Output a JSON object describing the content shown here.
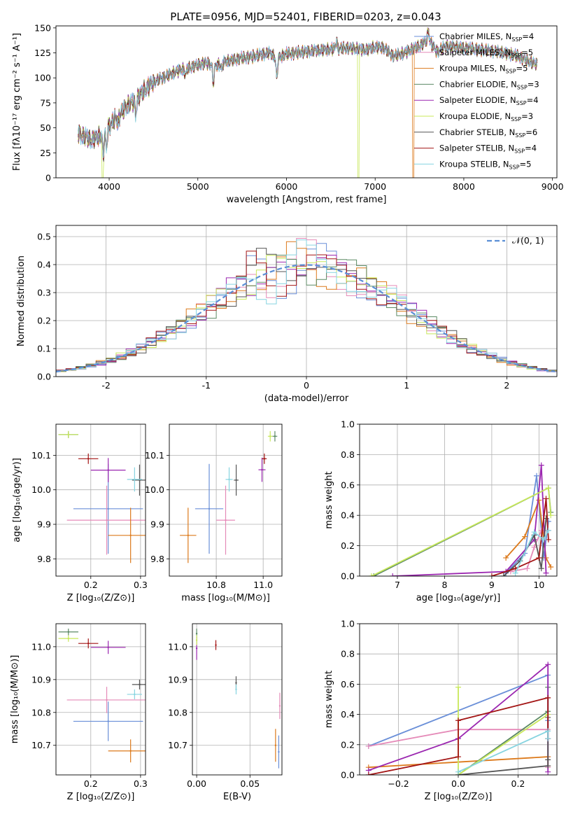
{
  "figure": {
    "title": "PLATE=0956, MJD=52401, FIBERID=0203, z=0.043"
  },
  "colors": {
    "Chabrier MILES": "#6a8fd8",
    "Salpeter MILES": "#e58ab8",
    "Kroupa MILES": "#dc7a1c",
    "Chabrier ELODIE": "#5c8a64",
    "Salpeter ELODIE": "#9b27b0",
    "Kroupa ELODIE": "#c8e85a",
    "Chabrier STELIB": "#555555",
    "Salpeter STELIB": "#a31515",
    "Kroupa STELIB": "#86d4e0"
  },
  "chart_data": [
    {
      "id": "spectrum",
      "type": "line",
      "title": "PLATE=0956, MJD=52401, FIBERID=0203, z=0.043",
      "xlabel": "wavelength [Angstrom, rest frame]",
      "ylabel": "Flux [f_λ 10^-17 erg cm^-2 s^-1 A^-1]",
      "xlim": [
        3400,
        9050
      ],
      "ylim": [
        0,
        152
      ],
      "xticks": [
        4000,
        5000,
        6000,
        7000,
        8000,
        9000
      ],
      "yticks": [
        0,
        25,
        50,
        75,
        100,
        125,
        150
      ],
      "legend": [
        "Chabrier MILES, N_SSP=4",
        "Salpeter MILES, N_SSP=5",
        "Kroupa MILES, N_SSP=5",
        "Chabrier ELODIE, N_SSP=3",
        "Salpeter ELODIE, N_SSP=4",
        "Kroupa ELODIE, N_SSP=3",
        "Chabrier STELIB, N_SSP=6",
        "Salpeter STELIB, N_SSP=4",
        "Kroupa STELIB, N_SSP=5"
      ],
      "legend_position": "right",
      "continuum": [
        [
          3650,
          45
        ],
        [
          3700,
          42
        ],
        [
          3800,
          38
        ],
        [
          3900,
          42
        ],
        [
          4000,
          52
        ],
        [
          4100,
          62
        ],
        [
          4200,
          72
        ],
        [
          4300,
          78
        ],
        [
          4400,
          88
        ],
        [
          4500,
          96
        ],
        [
          4600,
          100
        ],
        [
          4700,
          104
        ],
        [
          4800,
          108
        ],
        [
          4900,
          110
        ],
        [
          5000,
          113
        ],
        [
          5100,
          115
        ],
        [
          5200,
          112
        ],
        [
          5300,
          116
        ],
        [
          5400,
          118
        ],
        [
          5500,
          120
        ],
        [
          5600,
          121
        ],
        [
          5700,
          123
        ],
        [
          5800,
          125
        ],
        [
          5900,
          120
        ],
        [
          6000,
          124
        ],
        [
          6200,
          126
        ],
        [
          6400,
          128
        ],
        [
          6563,
          129
        ],
        [
          6700,
          130
        ],
        [
          6900,
          128
        ],
        [
          7000,
          131
        ],
        [
          7100,
          130
        ],
        [
          7200,
          122
        ],
        [
          7300,
          124
        ],
        [
          7400,
          128
        ],
        [
          7500,
          132
        ],
        [
          7600,
          138
        ],
        [
          7700,
          126
        ],
        [
          7800,
          132
        ],
        [
          8000,
          130
        ],
        [
          8200,
          128
        ],
        [
          8400,
          126
        ],
        [
          8500,
          124
        ],
        [
          8600,
          122
        ],
        [
          8700,
          118
        ],
        [
          8800,
          114
        ]
      ],
      "series_drop_wavelengths": {
        "Kroupa ELODIE": 6800,
        "Kroupa MILES": 7420
      }
    },
    {
      "id": "residuals",
      "type": "histogram",
      "xlabel": "(data-model)/error",
      "ylabel": "Normed distribution",
      "xlim": [
        -2.5,
        2.5
      ],
      "ylim": [
        0,
        0.54
      ],
      "xticks": [
        -2,
        -1,
        0,
        1,
        2
      ],
      "yticks": [
        0.0,
        0.1,
        0.2,
        0.3,
        0.4,
        0.5
      ],
      "legend": [
        "𝒩(0, 1)"
      ],
      "legend_position": "top-right",
      "bin_width": 0.1,
      "reference_curve": "normal(0,1)"
    },
    {
      "id": "age_vs_Z",
      "type": "scatter",
      "xlabel": "Z [log10(Z/Z⊙)]",
      "ylabel": "age [log10(age/yr)]",
      "xlim": [
        0.13,
        0.31
      ],
      "ylim": [
        9.75,
        10.19
      ],
      "xticks": [
        0.2,
        0.3
      ],
      "yticks": [
        9.8,
        9.9,
        10.0,
        10.1
      ],
      "points": [
        {
          "series": "Chabrier MILES",
          "x": 0.235,
          "y": 9.945,
          "xerr": 0.07,
          "yerr": 0.13
        },
        {
          "series": "Salpeter MILES",
          "x": 0.232,
          "y": 9.912,
          "xerr": 0.08,
          "yerr": 0.1
        },
        {
          "series": "Kroupa MILES",
          "x": 0.28,
          "y": 9.868,
          "xerr": 0.045,
          "yerr": 0.08
        },
        {
          "series": "Chabrier ELODIE",
          "x": 0.155,
          "y": 10.16,
          "xerr": 0.02,
          "yerr": 0.01
        },
        {
          "series": "Salpeter ELODIE",
          "x": 0.235,
          "y": 10.057,
          "xerr": 0.035,
          "yerr": 0.035
        },
        {
          "series": "Kroupa ELODIE",
          "x": 0.155,
          "y": 10.16,
          "xerr": 0.02,
          "yerr": 0.01
        },
        {
          "series": "Chabrier STELIB",
          "x": 0.298,
          "y": 10.028,
          "xerr": 0.015,
          "yerr": 0.045
        },
        {
          "series": "Salpeter STELIB",
          "x": 0.195,
          "y": 10.09,
          "xerr": 0.02,
          "yerr": 0.015
        },
        {
          "series": "Kroupa STELIB",
          "x": 0.288,
          "y": 10.03,
          "xerr": 0.015,
          "yerr": 0.035
        }
      ]
    },
    {
      "id": "age_vs_mass",
      "type": "scatter",
      "xlabel": "mass [log10(M/M⊙)]",
      "ylabel": "",
      "xlim": [
        10.6,
        11.08
      ],
      "ylim": [
        9.75,
        10.19
      ],
      "xticks": [
        10.8,
        11.0
      ],
      "xtick_labels": [
        "10.8",
        "11.0"
      ],
      "yticks": [
        9.8,
        9.9,
        10.0,
        10.1
      ],
      "points": [
        {
          "series": "Chabrier MILES",
          "x": 10.77,
          "y": 9.945,
          "xerr": 0.06,
          "yerr": 0.13
        },
        {
          "series": "Salpeter MILES",
          "x": 10.84,
          "y": 9.912,
          "xerr": 0.04,
          "yerr": 0.1
        },
        {
          "series": "Kroupa MILES",
          "x": 10.68,
          "y": 9.868,
          "xerr": 0.035,
          "yerr": 0.08
        },
        {
          "series": "Chabrier ELODIE",
          "x": 11.05,
          "y": 10.155,
          "xerr": 0.01,
          "yerr": 0.015
        },
        {
          "series": "Salpeter ELODIE",
          "x": 10.995,
          "y": 10.058,
          "xerr": 0.015,
          "yerr": 0.035
        },
        {
          "series": "Kroupa ELODIE",
          "x": 11.03,
          "y": 10.155,
          "xerr": 0.01,
          "yerr": 0.015
        },
        {
          "series": "Chabrier STELIB",
          "x": 10.885,
          "y": 10.028,
          "xerr": 0.01,
          "yerr": 0.045
        },
        {
          "series": "Salpeter STELIB",
          "x": 11.005,
          "y": 10.09,
          "xerr": 0.01,
          "yerr": 0.015
        },
        {
          "series": "Kroupa STELIB",
          "x": 10.855,
          "y": 10.03,
          "xerr": 0.015,
          "yerr": 0.035
        }
      ]
    },
    {
      "id": "weight_vs_age",
      "type": "line",
      "xlabel": "age [log10(age/yr)]",
      "ylabel": "mass weight",
      "xlim": [
        6.2,
        10.38
      ],
      "ylim": [
        0,
        1.0
      ],
      "xticks": [
        7,
        8,
        9,
        10
      ],
      "yticks": [
        0.0,
        0.2,
        0.4,
        0.6,
        0.8,
        1.0
      ],
      "series": [
        {
          "name": "Chabrier MILES",
          "points": [
            [
              9.3,
              0.02
            ],
            [
              9.7,
              0.15
            ],
            [
              9.95,
              0.66
            ],
            [
              10.1,
              0.12
            ],
            [
              10.2,
              0.36
            ]
          ]
        },
        {
          "name": "Salpeter MILES",
          "points": [
            [
              9.4,
              0.03
            ],
            [
              9.75,
              0.05
            ],
            [
              9.9,
              0.19
            ],
            [
              10.05,
              0.3
            ],
            [
              10.2,
              0.3
            ]
          ]
        },
        {
          "name": "Kroupa MILES",
          "points": [
            [
              9.3,
              0.12
            ],
            [
              9.7,
              0.26
            ],
            [
              10.0,
              0.5
            ],
            [
              10.15,
              0.12
            ],
            [
              10.25,
              0.06
            ]
          ]
        },
        {
          "name": "Chabrier ELODIE",
          "points": [
            [
              6.5,
              0.0
            ],
            [
              10.2,
              0.58
            ],
            [
              10.25,
              0.42
            ]
          ]
        },
        {
          "name": "Salpeter ELODIE",
          "points": [
            [
              6.9,
              0.0
            ],
            [
              9.3,
              0.03
            ],
            [
              9.9,
              0.24
            ],
            [
              10.05,
              0.73
            ],
            [
              10.15,
              0.02
            ]
          ]
        },
        {
          "name": "Kroupa ELODIE",
          "points": [
            [
              6.45,
              0.0
            ],
            [
              10.2,
              0.58
            ],
            [
              10.25,
              0.4
            ]
          ]
        },
        {
          "name": "Chabrier STELIB",
          "points": [
            [
              9.25,
              0.0
            ],
            [
              9.6,
              0.1
            ],
            [
              9.9,
              0.27
            ],
            [
              10.05,
              0.05
            ],
            [
              10.15,
              0.38
            ]
          ]
        },
        {
          "name": "Salpeter STELIB",
          "points": [
            [
              9.0,
              0.0
            ],
            [
              9.5,
              0.05
            ],
            [
              10.0,
              0.12
            ],
            [
              10.15,
              0.51
            ],
            [
              10.2,
              0.24
            ]
          ]
        },
        {
          "name": "Kroupa STELIB",
          "points": [
            [
              9.5,
              0.02
            ],
            [
              9.9,
              0.29
            ],
            [
              10.1,
              0.24
            ],
            [
              10.2,
              0.3
            ]
          ]
        }
      ]
    },
    {
      "id": "mass_vs_Z",
      "type": "scatter",
      "xlabel": "Z [log10(Z/Z⊙)]",
      "ylabel": "mass [log10(M/M⊙)]",
      "xlim": [
        0.13,
        0.31
      ],
      "ylim": [
        10.61,
        11.07
      ],
      "xticks": [
        0.2,
        0.3
      ],
      "yticks": [
        10.7,
        10.8,
        10.9,
        11.0
      ],
      "points": [
        {
          "series": "Chabrier MILES",
          "x": 0.235,
          "y": 10.773,
          "xerr": 0.07,
          "yerr": 0.06
        },
        {
          "series": "Salpeter MILES",
          "x": 0.232,
          "y": 10.838,
          "xerr": 0.08,
          "yerr": 0.04
        },
        {
          "series": "Kroupa MILES",
          "x": 0.28,
          "y": 10.683,
          "xerr": 0.045,
          "yerr": 0.035
        },
        {
          "series": "Chabrier ELODIE",
          "x": 0.155,
          "y": 11.045,
          "xerr": 0.02,
          "yerr": 0.01
        },
        {
          "series": "Salpeter ELODIE",
          "x": 0.235,
          "y": 10.998,
          "xerr": 0.035,
          "yerr": 0.02
        },
        {
          "series": "Kroupa ELODIE",
          "x": 0.155,
          "y": 11.025,
          "xerr": 0.02,
          "yerr": 0.01
        },
        {
          "series": "Chabrier STELIB",
          "x": 0.298,
          "y": 10.885,
          "xerr": 0.015,
          "yerr": 0.015
        },
        {
          "series": "Salpeter STELIB",
          "x": 0.195,
          "y": 11.01,
          "xerr": 0.02,
          "yerr": 0.015
        },
        {
          "series": "Kroupa STELIB",
          "x": 0.288,
          "y": 10.855,
          "xerr": 0.015,
          "yerr": 0.015
        }
      ]
    },
    {
      "id": "mass_vs_ebv",
      "type": "scatter",
      "xlabel": "E(B-V)",
      "ylabel": "",
      "xlim": [
        -0.004,
        0.08
      ],
      "ylim": [
        10.61,
        11.07
      ],
      "xticks": [
        0.0,
        0.05
      ],
      "xtick_labels": [
        "0.00",
        "0.05"
      ],
      "yticks": [
        10.7,
        10.8,
        10.9,
        11.0
      ],
      "points": [
        {
          "series": "Chabrier MILES",
          "x": 0.077,
          "y": 10.68,
          "xerr": 0.0,
          "yerr": 0.05
        },
        {
          "series": "Salpeter MILES",
          "x": 0.078,
          "y": 10.82,
          "xerr": 0.0,
          "yerr": 0.04
        },
        {
          "series": "Kroupa MILES",
          "x": 0.074,
          "y": 10.7,
          "xerr": 0.0,
          "yerr": 0.05
        },
        {
          "series": "Chabrier ELODIE",
          "x": 0.0,
          "y": 11.04,
          "xerr": 0.0,
          "yerr": 0.015
        },
        {
          "series": "Salpeter ELODIE",
          "x": 0.0,
          "y": 10.995,
          "xerr": 0.0,
          "yerr": 0.035
        },
        {
          "series": "Kroupa ELODIE",
          "x": 0.0,
          "y": 11.02,
          "xerr": 0.0,
          "yerr": 0.015
        },
        {
          "series": "Chabrier STELIB",
          "x": 0.037,
          "y": 10.89,
          "xerr": 0.0,
          "yerr": 0.02
        },
        {
          "series": "Salpeter STELIB",
          "x": 0.018,
          "y": 11.005,
          "xerr": 0.0,
          "yerr": 0.015
        },
        {
          "series": "Kroupa STELIB",
          "x": 0.037,
          "y": 10.87,
          "xerr": 0.0,
          "yerr": 0.015
        }
      ]
    },
    {
      "id": "weight_vs_Z",
      "type": "line",
      "xlabel": "Z [log10(Z/Z⊙)]",
      "ylabel": "mass weight",
      "xlim": [
        -0.33,
        0.33
      ],
      "ylim": [
        0,
        1.0
      ],
      "xticks": [
        -0.2,
        0.0,
        0.2
      ],
      "xtick_labels": [
        "−0.2",
        "0.0",
        "0.2"
      ],
      "yticks": [
        0.0,
        0.2,
        0.4,
        0.6,
        0.8,
        1.0
      ],
      "series": [
        {
          "name": "Chabrier MILES",
          "points": [
            [
              -0.3,
              0.19
            ],
            [
              0.3,
              0.66
            ],
            [
              0.3,
              0.36
            ],
            [
              0.3,
              0.12
            ]
          ]
        },
        {
          "name": "Salpeter MILES",
          "points": [
            [
              -0.3,
              0.19
            ],
            [
              0.0,
              0.3
            ],
            [
              0.3,
              0.3
            ],
            [
              0.3,
              0.05
            ]
          ]
        },
        {
          "name": "Kroupa MILES",
          "points": [
            [
              -0.3,
              0.05
            ],
            [
              0.3,
              0.12
            ],
            [
              0.3,
              0.06
            ]
          ]
        },
        {
          "name": "Chabrier ELODIE",
          "points": [
            [
              0.0,
              0.0
            ],
            [
              0.3,
              0.42
            ],
            [
              0.3,
              0.58
            ]
          ]
        },
        {
          "name": "Salpeter ELODIE",
          "points": [
            [
              -0.3,
              0.03
            ],
            [
              0.0,
              0.24
            ],
            [
              0.3,
              0.73
            ],
            [
              0.3,
              0.02
            ]
          ]
        },
        {
          "name": "Kroupa ELODIE",
          "points": [
            [
              0.0,
              0.58
            ],
            [
              0.0,
              0.0
            ],
            [
              0.3,
              0.4
            ]
          ]
        },
        {
          "name": "Chabrier STELIB",
          "points": [
            [
              0.0,
              0.0
            ],
            [
              0.3,
              0.06
            ],
            [
              0.3,
              0.38
            ],
            [
              0.3,
              0.1
            ]
          ]
        },
        {
          "name": "Salpeter STELIB",
          "points": [
            [
              -0.3,
              0.0
            ],
            [
              0.0,
              0.12
            ],
            [
              0.0,
              0.36
            ],
            [
              0.3,
              0.51
            ],
            [
              0.3,
              0.24
            ]
          ]
        },
        {
          "name": "Kroupa STELIB",
          "points": [
            [
              0.0,
              0.02
            ],
            [
              0.3,
              0.29
            ],
            [
              0.3,
              0.24
            ]
          ]
        }
      ]
    }
  ]
}
